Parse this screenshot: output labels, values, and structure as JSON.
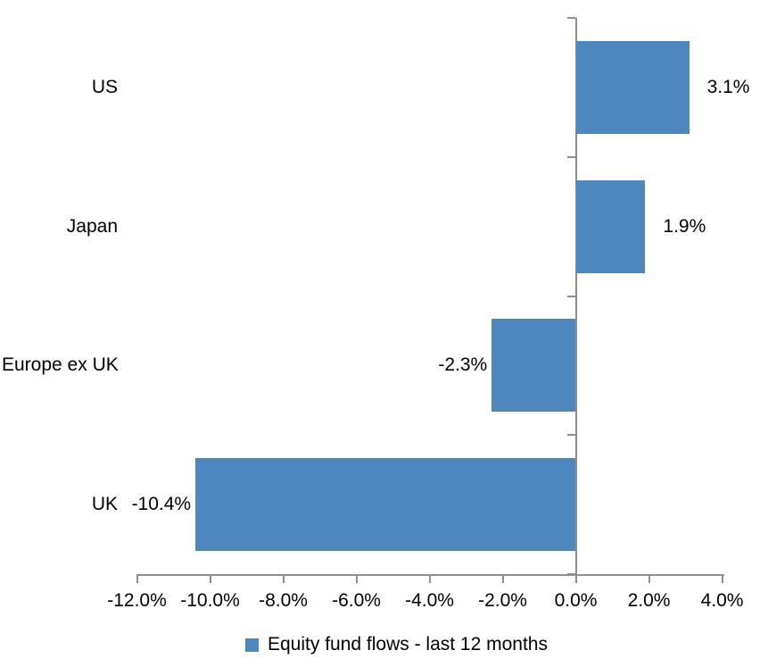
{
  "chart_data": {
    "type": "bar",
    "orientation": "horizontal",
    "title": "",
    "categories": [
      "US",
      "Japan",
      "Europe ex UK",
      "UK"
    ],
    "values": [
      3.1,
      1.9,
      -2.3,
      -10.4
    ],
    "value_labels": [
      "3.1%",
      "1.9%",
      "-2.3%",
      "-10.4%"
    ],
    "series_name": "Equity fund flows - last 12 months",
    "xlim": [
      -12,
      4
    ],
    "x_ticks": [
      -12,
      -10,
      -8,
      -6,
      -4,
      -2,
      0,
      2,
      4
    ],
    "x_tick_labels": [
      "-12.0%",
      "-10.0%",
      "-8.0%",
      "-6.0%",
      "-4.0%",
      "-2.0%",
      "0.0%",
      "2.0%",
      "4.0%"
    ],
    "grid": false,
    "legend_position": "bottom",
    "colors": {
      "bar": "#4E87BE",
      "axis": "#8F8F8F",
      "text": "#000000",
      "background": "#FFFFFF"
    }
  },
  "legend": {
    "label": "Equity fund flows - last 12 months",
    "swatch_icon": "legend-swatch-square"
  }
}
